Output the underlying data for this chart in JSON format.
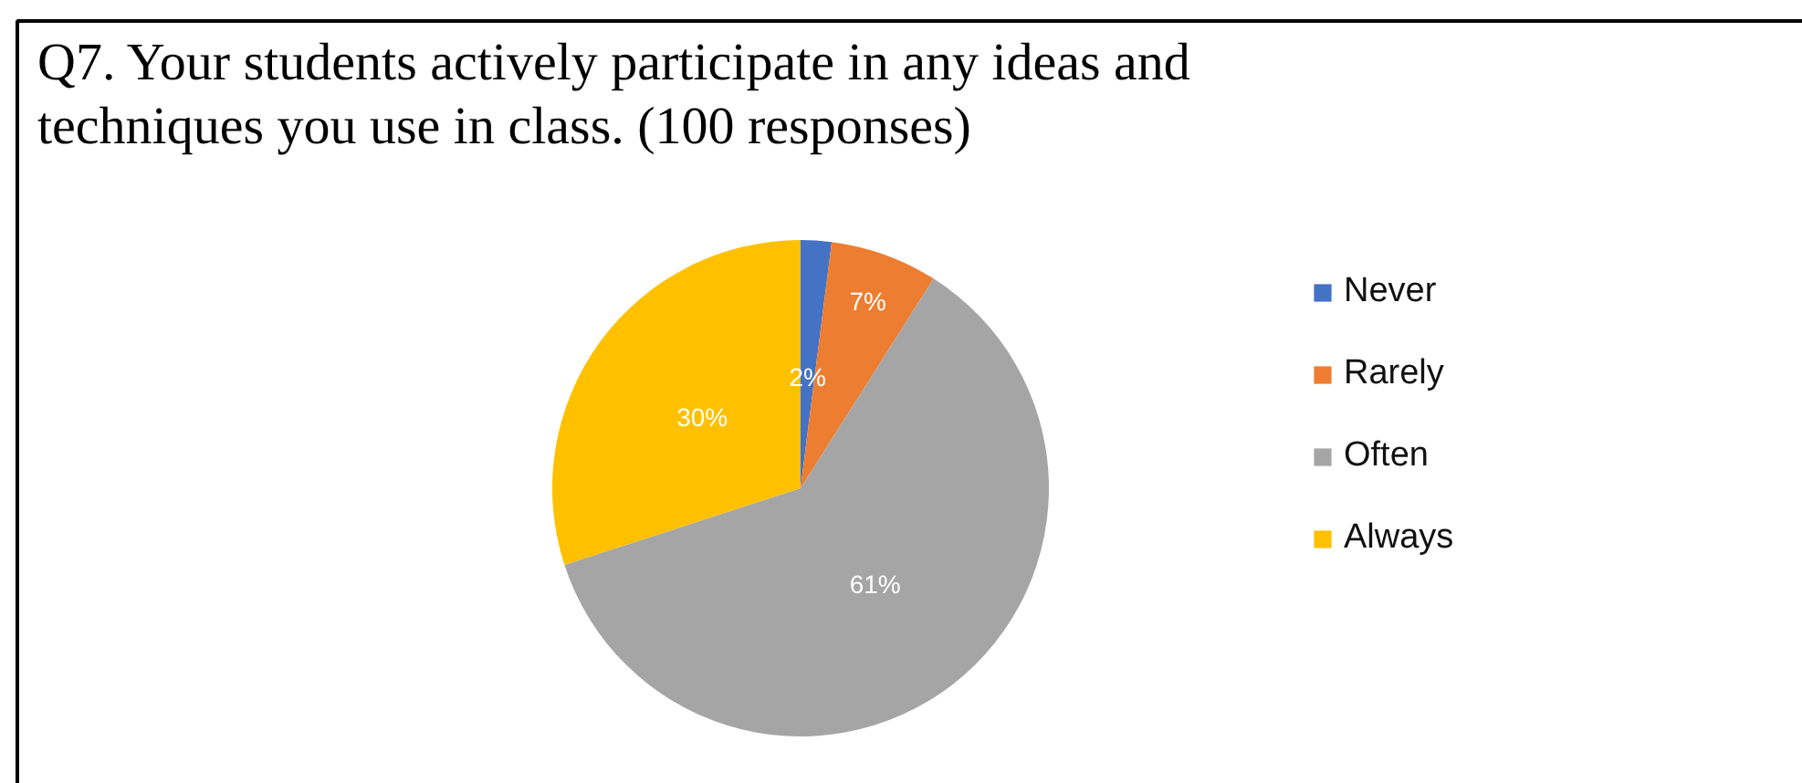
{
  "chart_data": {
    "type": "pie",
    "title": "Q7. Your students actively participate in any ideas and techniques you use in class. (100 responses)",
    "categories": [
      "Never",
      "Rarely",
      "Often",
      "Always"
    ],
    "values": [
      2,
      7,
      61,
      30
    ],
    "colors": [
      "#4472c4",
      "#ed7d31",
      "#a5a5a5",
      "#ffc000"
    ],
    "value_labels": [
      "2%",
      "7%",
      "61%",
      "30%"
    ],
    "legend": "right"
  }
}
